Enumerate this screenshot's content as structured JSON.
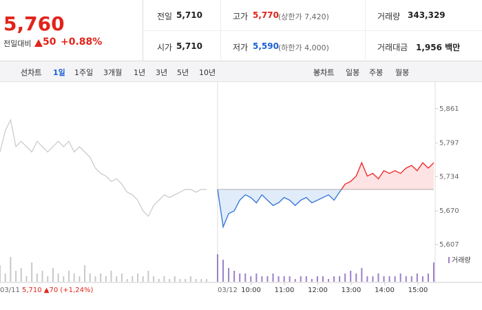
{
  "quote": {
    "price": "5,760",
    "change_label": "전일대비",
    "change": "50",
    "change_pct": "+0.88%"
  },
  "stats": [
    {
      "label": "전일",
      "value": "5,710"
    },
    {
      "label": "고가",
      "value": "5,770",
      "note": "(상한가 7,420)"
    },
    {
      "label": "거래량",
      "value": "343,329"
    },
    {
      "label": "시가",
      "value": "5,710"
    },
    {
      "label": "저가",
      "value": "5,590",
      "note": "(하한가 4,000)"
    },
    {
      "label": "거래대금",
      "value": "1,956 백만"
    }
  ],
  "nav": {
    "line_label": "선차트",
    "line_periods": [
      "1일",
      "1주일",
      "3개월",
      "1년",
      "3년",
      "5년",
      "10년"
    ],
    "candle_label": "봉차트",
    "candle_periods": [
      "일봉",
      "주봉",
      "월봉"
    ]
  },
  "chart": {
    "ylim": [
      5580,
      5880
    ],
    "yticks": [
      {
        "value": 5861,
        "label": "5,861"
      },
      {
        "value": 5797,
        "label": "5,797"
      },
      {
        "value": 5734,
        "label": "5,734"
      },
      {
        "value": 5670,
        "label": "5,670"
      },
      {
        "value": 5607,
        "label": "5,607"
      }
    ],
    "base_value": 5710,
    "prev_day": {
      "date": "03/11",
      "summary": "5,710 ▲70 (+1,24%)",
      "values": [
        5780,
        5820,
        5840,
        5790,
        5800,
        5790,
        5780,
        5800,
        5790,
        5780,
        5790,
        5800,
        5790,
        5800,
        5780,
        5790,
        5780,
        5770,
        5750,
        5740,
        5735,
        5725,
        5730,
        5720,
        5705,
        5700,
        5690,
        5670,
        5660,
        5680,
        5690,
        5700,
        5695,
        5700,
        5705,
        5710,
        5710,
        5705,
        5710,
        5710
      ],
      "volume": [
        6,
        3,
        9,
        4,
        5,
        2,
        7,
        3,
        4,
        2,
        5,
        3,
        2,
        4,
        3,
        2,
        6,
        3,
        2,
        3,
        2,
        4,
        2,
        3,
        1,
        2,
        3,
        2,
        4,
        2,
        1,
        2,
        1,
        2,
        1,
        1,
        2,
        1,
        1,
        1
      ]
    },
    "today": {
      "date": "03/12",
      "values": [
        5710,
        5640,
        5665,
        5670,
        5690,
        5700,
        5695,
        5685,
        5700,
        5690,
        5680,
        5685,
        5695,
        5690,
        5680,
        5690,
        5695,
        5685,
        5690,
        5695,
        5700,
        5690,
        5705,
        5720,
        5725,
        5735,
        5760,
        5735,
        5740,
        5730,
        5745,
        5740,
        5745,
        5740,
        5750,
        5755,
        5745,
        5760,
        5750,
        5760
      ],
      "volume": [
        10,
        8,
        5,
        4,
        3,
        3,
        2,
        3,
        2,
        2,
        3,
        2,
        2,
        2,
        1,
        2,
        2,
        1,
        2,
        2,
        1,
        2,
        2,
        3,
        4,
        3,
        5,
        2,
        2,
        3,
        2,
        2,
        2,
        3,
        2,
        2,
        3,
        2,
        3,
        7
      ]
    },
    "xticks": [
      "10:00",
      "11:00",
      "12:00",
      "13:00",
      "14:00",
      "15:00"
    ],
    "volume_legend": "거래량"
  }
}
